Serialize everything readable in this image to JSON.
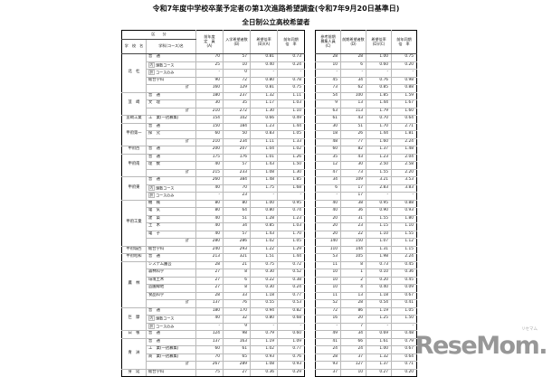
{
  "title": "令和7年度中学校卒業予定者の第1次進路希望調査(令和7年9月20日基準日)",
  "subtitle": "全日制公立高校希望者",
  "header": {
    "kubun": "区　　分",
    "school": "学　校　名",
    "dept": "学科(コース)名",
    "a": "前年度\n定　員\n(A)",
    "b": "入学希望者数\n(B)",
    "rb": "希望倍率\n(B)/(A)",
    "pb": "前年同期\n倍　率",
    "c": "参考前期\n募集人員\n(C)",
    "d": "前期希望者数\n(D)",
    "rd": "希望倍率\n(D)/(C)",
    "pd": "前年同期\n倍　率"
  },
  "schools": [
    {
      "name": "北　杜",
      "rows": [
        {
          "dept": "普　通",
          "v": [
            "70",
            "57",
            "0.81",
            "0.73",
            "28",
            "28",
            "1.00",
            "0.75"
          ]
        },
        {
          "prefix": "内",
          "dept": "理数コース",
          "v": [
            "25",
            "10",
            "0.40",
            "0.24",
            "10",
            "6",
            "0.60",
            "0.20"
          ]
        },
        {
          "prefix": "訳",
          "dept": "コースのみ",
          "v": [
            "-",
            "0",
            "-",
            "-",
            "-",
            "-",
            "-",
            "-"
          ]
        },
        {
          "dept": "総合学科",
          "v": [
            "90",
            "72",
            "0.80",
            "0.78",
            "45",
            "34",
            "0.76",
            "0.98"
          ]
        },
        {
          "total": true,
          "dept": "計",
          "v": [
            "160",
            "129",
            "0.81",
            "0.75",
            "73",
            "62",
            "0.85",
            "0.88"
          ]
        }
      ]
    },
    {
      "name": "韮　崎",
      "rows": [
        {
          "dept": "普　通",
          "v": [
            "180",
            "237",
            "1.32",
            "1.11",
            "54",
            "100",
            "1.85",
            "1.59"
          ]
        },
        {
          "dept": "文　理",
          "v": [
            "30",
            "35",
            "1.17",
            "1.03",
            "9",
            "13",
            "1.44",
            "1.67"
          ]
        },
        {
          "total": true,
          "dept": "計",
          "v": [
            "210",
            "272",
            "1.30",
            "1.10",
            "63",
            "113",
            "1.79",
            "1.60"
          ]
        }
      ]
    },
    {
      "name": "韮崎工業",
      "rows": [
        {
          "dept": "工　業(一括募集)",
          "v": [
            "154",
            "102",
            "0.66",
            "0.49",
            "61",
            "43",
            "0.70",
            "0.64"
          ]
        }
      ]
    },
    {
      "name": "甲府第一",
      "rows": [
        {
          "dept": "普　通",
          "v": [
            "150",
            "184",
            "1.23",
            "1.44",
            "30",
            "51",
            "1.70",
            "2.71"
          ]
        },
        {
          "dept": "探　究",
          "v": [
            "60",
            "50",
            "0.83",
            "1.05",
            "18",
            "26",
            "1.44",
            "1.81"
          ]
        },
        {
          "total": true,
          "dept": "計",
          "v": [
            "210",
            "234",
            "1.11",
            "1.33",
            "48",
            "77",
            "1.60",
            "2.24"
          ]
        }
      ]
    },
    {
      "name": "甲府西",
      "rows": [
        {
          "dept": "普　通",
          "v": [
            "200",
            "207",
            "1.04",
            "1.02",
            "60",
            "82",
            "1.37",
            "1.48"
          ]
        }
      ]
    },
    {
      "name": "甲府南",
      "rows": [
        {
          "dept": "普　通",
          "v": [
            "175",
            "176",
            "1.01",
            "1.26",
            "35",
            "43",
            "1.23",
            "2.04"
          ]
        },
        {
          "dept": "理　数",
          "v": [
            "40",
            "57",
            "1.43",
            "1.50",
            "12",
            "30",
            "2.50",
            "2.58"
          ]
        },
        {
          "total": true,
          "dept": "計",
          "v": [
            "215",
            "233",
            "1.08",
            "1.30",
            "47",
            "73",
            "1.55",
            "2.20"
          ]
        }
      ]
    },
    {
      "name": "甲府東",
      "rows": [
        {
          "dept": "普　通",
          "v": [
            "260",
            "384",
            "1.48",
            "1.85",
            "34",
            "109",
            "3.21",
            "3.53"
          ]
        },
        {
          "prefix": "内",
          "dept": "理数コース",
          "v": [
            "40",
            "70",
            "1.75",
            "1.68",
            "6",
            "17",
            "2.83",
            "3.83"
          ]
        },
        {
          "prefix": "訳",
          "dept": "コースのみ",
          "v": [
            "-",
            "23",
            "-",
            "-",
            "-",
            "17",
            "-",
            "-"
          ]
        }
      ]
    },
    {
      "name": "甲府工業",
      "rows": [
        {
          "dept": "機　械",
          "v": [
            "80",
            "80",
            "1.00",
            "0.95",
            "40",
            "38",
            "0.95",
            "0.88"
          ]
        },
        {
          "dept": "電　気",
          "v": [
            "80",
            "64",
            "0.80",
            "0.74",
            "40",
            "36",
            "0.90",
            "0.93"
          ]
        },
        {
          "dept": "建　築",
          "v": [
            "40",
            "51",
            "1.28",
            "1.23",
            "20",
            "31",
            "1.55",
            "1.80"
          ]
        },
        {
          "dept": "土　木",
          "v": [
            "40",
            "34",
            "0.85",
            "1.03",
            "20",
            "23",
            "1.15",
            "1.10"
          ]
        },
        {
          "dept": "電　子",
          "v": [
            "40",
            "57",
            "1.43",
            "1.70",
            "20",
            "22",
            "1.10",
            "1.55"
          ]
        },
        {
          "total": true,
          "dept": "計",
          "v": [
            "280",
            "286",
            "1.02",
            "1.05",
            "140",
            "150",
            "1.07",
            "1.12"
          ]
        }
      ]
    },
    {
      "name": "甲府城西",
      "rows": [
        {
          "dept": "総合学科",
          "v": [
            "240",
            "293",
            "1.22",
            "1.29",
            "110",
            "144",
            "1.31",
            "1.15"
          ]
        }
      ]
    },
    {
      "name": "甲府昭和",
      "rows": [
        {
          "dept": "普　通",
          "v": [
            "213",
            "321",
            "1.51",
            "1.44",
            "53",
            "105",
            "1.98",
            "2.24"
          ]
        }
      ]
    },
    {
      "name": "農　林",
      "rows": [
        {
          "dept": "システム園芸",
          "v": [
            "28",
            "21",
            "0.75",
            "0.72",
            "11",
            "8",
            "0.73",
            "0.45"
          ]
        },
        {
          "dept": "森林科学",
          "v": [
            "27",
            "8",
            "0.30",
            "0.52",
            "10",
            "1",
            "0.10",
            "0.36"
          ]
        },
        {
          "dept": "環境土木",
          "v": [
            "27",
            "6",
            "0.22",
            "0.38",
            "10",
            "2",
            "0.20",
            "0.45"
          ]
        },
        {
          "dept": "造園緑地",
          "v": [
            "27",
            "8",
            "0.30",
            "0.24",
            "10",
            "4",
            "0.40",
            "0.09"
          ]
        },
        {
          "dept": "食品科学",
          "v": [
            "28",
            "33",
            "1.18",
            "0.77",
            "11",
            "13",
            "1.18",
            "0.67"
          ]
        },
        {
          "total": true,
          "dept": "計",
          "v": [
            "137",
            "76",
            "0.55",
            "0.53",
            "52",
            "28",
            "0.54",
            "0.41"
          ]
        }
      ]
    },
    {
      "name": "巨　摩",
      "rows": [
        {
          "dept": "普　通",
          "v": [
            "180",
            "170",
            "0.94",
            "0.82",
            "72",
            "86",
            "1.19",
            "1.05"
          ]
        },
        {
          "prefix": "内",
          "dept": "理数コース",
          "v": [
            "40",
            "32",
            "0.80",
            "0.68",
            "16",
            "20",
            "1.25",
            "1.50"
          ]
        },
        {
          "prefix": "訳",
          "dept": "コースのみ",
          "v": [
            "-",
            "9",
            "-",
            "-",
            "-",
            "7",
            "-",
            "-"
          ]
        }
      ]
    },
    {
      "name": "白　根",
      "rows": [
        {
          "dept": "普　通",
          "v": [
            "124",
            "98",
            "0.79",
            "0.60",
            "49",
            "34",
            "0.69",
            "0.48"
          ]
        }
      ]
    },
    {
      "name": "青　洲",
      "rows": [
        {
          "dept": "普　通",
          "v": [
            "137",
            "163",
            "1.19",
            "1.09",
            "41",
            "66",
            "1.61",
            "0.79"
          ]
        },
        {
          "dept": "工　業(一括募集)",
          "v": [
            "60",
            "61",
            "1.02",
            "0.77",
            "24",
            "24",
            "1.00",
            "0.67"
          ]
        },
        {
          "dept": "商　業(一括募集)",
          "v": [
            "70",
            "65",
            "0.93",
            "0.76",
            "28",
            "37",
            "1.32",
            "0.64"
          ]
        },
        {
          "total": true,
          "dept": "計",
          "v": [
            "267",
            "289",
            "1.08",
            "0.93",
            "93",
            "127",
            "1.37",
            "0.71"
          ]
        }
      ]
    },
    {
      "name": "身　延",
      "rows": [
        {
          "dept": "総合学科",
          "v": [
            "75",
            "27",
            "0.36",
            "0.29",
            "37",
            "10",
            "0.27",
            "0.20"
          ]
        }
      ]
    }
  ],
  "watermark": {
    "logo": "ReseMom.",
    "small": "リセマム",
    "color": "#979797"
  }
}
